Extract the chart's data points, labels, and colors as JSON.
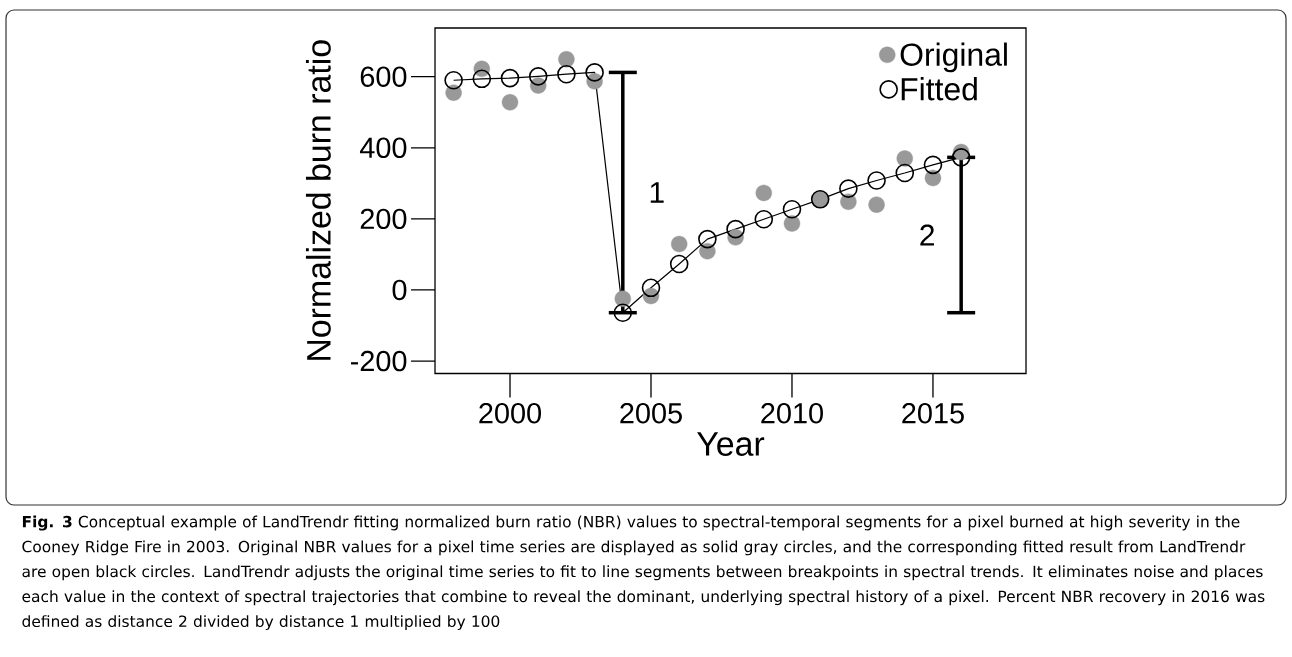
{
  "chart_data": {
    "type": "scatter",
    "xlabel": "Year",
    "ylabel": "Normalized burn ratio",
    "x": [
      1998,
      1999,
      2000,
      2001,
      2002,
      2003,
      2004,
      2005,
      2006,
      2007,
      2008,
      2009,
      2010,
      2011,
      2012,
      2013,
      2014,
      2015,
      2016
    ],
    "series": [
      {
        "name": "Original",
        "color": "#999999",
        "values": [
          555,
          622,
          528,
          575,
          649,
          587,
          -25,
          -17,
          129,
          109,
          148,
          273,
          187,
          255,
          248,
          240,
          370,
          315,
          388
        ]
      },
      {
        "name": "Fitted",
        "type": "line",
        "color": "#000000",
        "values": [
          590,
          594,
          596,
          601,
          607,
          612,
          -64,
          6,
          73,
          143,
          171,
          199,
          227,
          255,
          285,
          308,
          329,
          352,
          373
        ],
        "errors": [
          null,
          null,
          null,
          null,
          null,
          null,
          [
            -64,
            612
          ],
          null,
          null,
          null,
          null,
          null,
          null,
          null,
          null,
          null,
          null,
          null,
          [
            -64,
            373
          ]
        ]
      }
    ],
    "xlim": [
      1997.34,
      2018.3
    ],
    "xticks": [
      2000,
      2005,
      2010,
      2015
    ],
    "ylim": [
      -235,
      737
    ],
    "yticks": [
      -200,
      0,
      200,
      400,
      600
    ],
    "marker": "circle",
    "legend": "top right",
    "annotations": [
      "1",
      "2",
      "**Fig. 3** Conceptual example of LandTrendr fitting normalized burn ratio (NBR) values to spectral-temporal segments for a pixel burned at high severity in the Cooney Ridge Fire in 2003. Original NBR values for a pixel time series are displayed as solid gray circles, and the corresponding fitted result from LandTrendr are open black circles. LandTrendr adjusts the original time series to fit to line segments between breakpoints in spectral trends. It eliminates noise and places each value in the context of spectral trajectories that combine to reveal the dominant, underlying spectral history of a pixel. Percent NBR recovery in 2016 was defined as distance 2 divided by distance 1 multiplied by 100"
    ]
  }
}
